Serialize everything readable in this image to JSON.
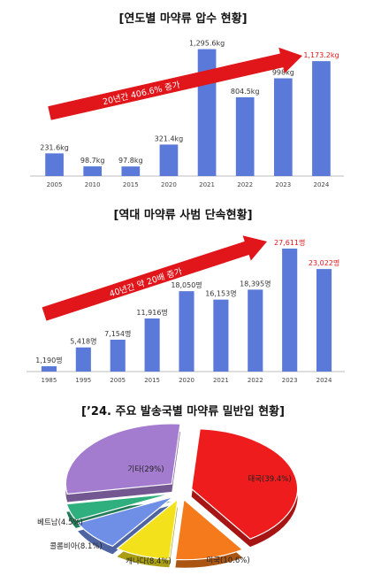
{
  "chart_data": [
    {
      "type": "bar",
      "title": "[연도별 마약류 압수 현황]",
      "categories": [
        "2005",
        "2010",
        "2015",
        "2020",
        "2021",
        "2022",
        "2023",
        "2024"
      ],
      "values": [
        231.6,
        98.7,
        97.8,
        321.4,
        1295.6,
        804.5,
        998,
        1173.2
      ],
      "value_labels": [
        "231.6kg",
        "98.7kg",
        "97.8kg",
        "321.4kg",
        "1,295.6kg",
        "804.5kg",
        "998kg",
        "1,173.2kg"
      ],
      "highlight_index": 7,
      "annotation": "20년간 406.6% 증가",
      "ylim": [
        0,
        1400
      ],
      "bar_color": "#5b79d8",
      "highlight_color": "#e0161b",
      "arrow_color": "#e0161b"
    },
    {
      "type": "bar",
      "title": "[역대 마약류 사범 단속현황]",
      "categories": [
        "1985",
        "1995",
        "2005",
        "2015",
        "2020",
        "2021",
        "2022",
        "2023",
        "2024"
      ],
      "values": [
        1190,
        5418,
        7154,
        11916,
        18050,
        16153,
        18395,
        27611,
        23022
      ],
      "value_labels": [
        "1,190명",
        "5,418명",
        "7,154명",
        "11,916명",
        "18,050명",
        "16,153명",
        "18,395명",
        "27,611명",
        "23,022명"
      ],
      "highlight_indices": [
        7,
        8
      ],
      "annotation": "40년간 약 20배 증가",
      "ylim": [
        0,
        29000
      ],
      "bar_color": "#5b79d8",
      "highlight_color": "#e0161b",
      "arrow_color": "#e0161b"
    },
    {
      "type": "pie",
      "title": "[’24. 주요 발송국별 마약류 밀반입 현황]",
      "slices": [
        {
          "label": "태국(39.4%)",
          "value": 39.4,
          "color": "#ee1c1c"
        },
        {
          "label": "미국(10.6%)",
          "value": 10.6,
          "color": "#f47a1b"
        },
        {
          "label": "캐나다(8.4%)",
          "value": 8.4,
          "color": "#f3e21b"
        },
        {
          "label": "콜롬비아(8.1%)",
          "value": 8.1,
          "color": "#6f8fe6"
        },
        {
          "label": "베트남(4.5%)",
          "value": 4.5,
          "color": "#2fae7e"
        },
        {
          "label": "기타(29%)",
          "value": 29,
          "color": "#a47ccf"
        }
      ]
    }
  ]
}
